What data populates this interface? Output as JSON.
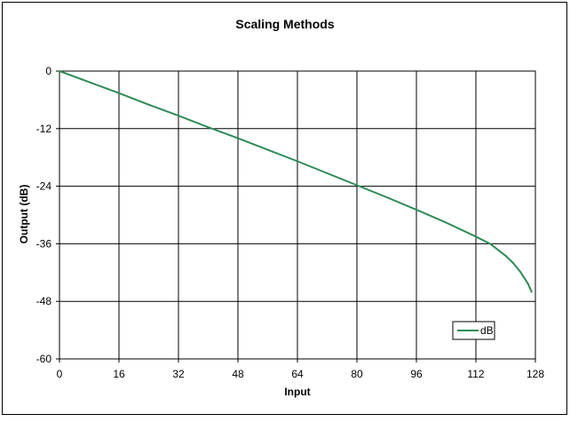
{
  "chart_data": {
    "type": "line",
    "title": "Scaling Methods",
    "xlabel": "Input",
    "ylabel": "Output (dB)",
    "xlim": [
      0,
      128
    ],
    "ylim": [
      -60,
      0
    ],
    "xticks": [
      0,
      16,
      32,
      48,
      64,
      80,
      96,
      112,
      128
    ],
    "yticks": [
      0,
      -12,
      -24,
      -36,
      -48,
      -60
    ],
    "grid": true,
    "legend_position": "bottom-right",
    "series": [
      {
        "name": "dB",
        "color": "#2e8b57",
        "x": [
          0,
          8,
          16,
          24,
          32,
          40,
          48,
          56,
          64,
          72,
          80,
          88,
          96,
          104,
          112,
          116,
          120,
          122,
          124,
          126,
          127
        ],
        "y": [
          0,
          -2.3,
          -4.6,
          -7.0,
          -9.3,
          -11.7,
          -14.0,
          -16.4,
          -18.8,
          -21.3,
          -23.8,
          -26.3,
          -28.9,
          -31.6,
          -34.5,
          -36.1,
          -38.5,
          -40.0,
          -41.9,
          -44.3,
          -46.0
        ]
      }
    ]
  }
}
